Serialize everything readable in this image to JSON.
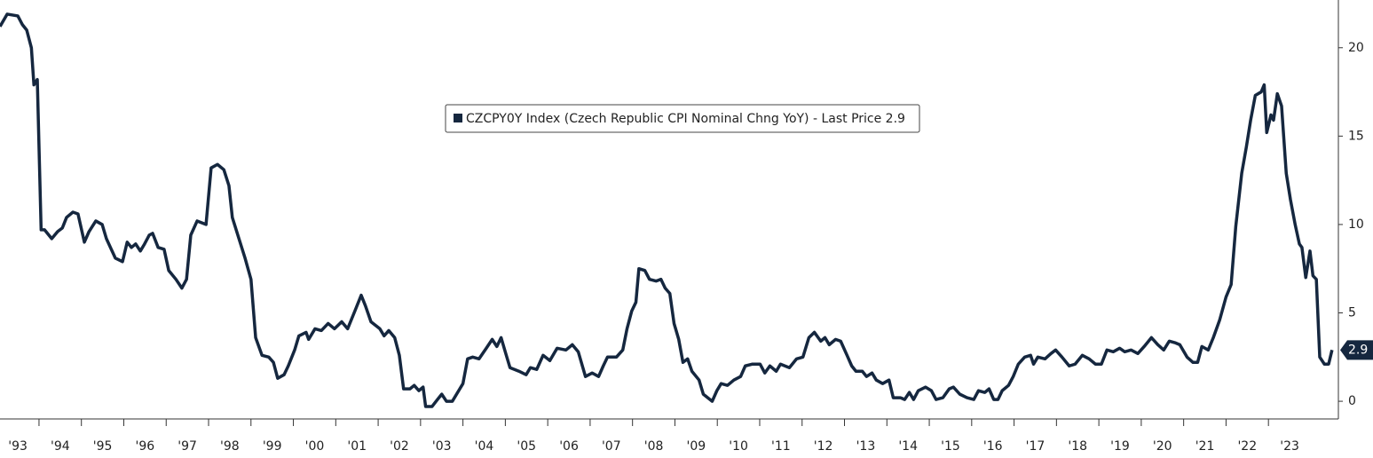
{
  "chart_data": {
    "type": "line",
    "x": [
      1993.08,
      1993.25,
      1993.5,
      1993.61,
      1993.71,
      1993.82,
      1993.88,
      1993.96,
      1994.05,
      1994.13,
      1994.3,
      1994.44,
      1994.55,
      1994.65,
      1994.8,
      1994.92,
      1995.07,
      1995.18,
      1995.34,
      1995.49,
      1995.59,
      1995.8,
      1995.97,
      1996.08,
      1996.18,
      1996.28,
      1996.39,
      1996.49,
      1996.6,
      1996.68,
      1996.81,
      1996.95,
      1997.06,
      1997.23,
      1997.37,
      1997.48,
      1997.58,
      1997.73,
      1997.94,
      1998.06,
      1998.21,
      1998.36,
      1998.48,
      1998.56,
      1998.69,
      1998.86,
      1999.0,
      1999.11,
      1999.26,
      1999.42,
      1999.53,
      1999.63,
      1999.78,
      1999.88,
      2000.03,
      2000.13,
      2000.3,
      2000.36,
      2000.51,
      2000.66,
      2000.82,
      2000.97,
      2001.14,
      2001.28,
      2001.45,
      2001.6,
      2001.7,
      2001.83,
      2002.04,
      2002.14,
      2002.25,
      2002.39,
      2002.5,
      2002.6,
      2002.75,
      2002.85,
      2002.96,
      2003.06,
      2003.12,
      2003.27,
      2003.4,
      2003.5,
      2003.61,
      2003.75,
      2003.9,
      2004.0,
      2004.11,
      2004.23,
      2004.38,
      2004.55,
      2004.69,
      2004.8,
      2004.9,
      2005.01,
      2005.11,
      2005.32,
      2005.49,
      2005.59,
      2005.74,
      2005.89,
      2006.05,
      2006.22,
      2006.43,
      2006.58,
      2006.72,
      2006.89,
      2007.05,
      2007.2,
      2007.31,
      2007.41,
      2007.62,
      2007.77,
      2007.87,
      2007.98,
      2008.08,
      2008.15,
      2008.29,
      2008.4,
      2008.56,
      2008.67,
      2008.77,
      2008.88,
      2008.98,
      2009.09,
      2009.19,
      2009.3,
      2009.4,
      2009.57,
      2009.67,
      2009.88,
      2009.99,
      2010.09,
      2010.24,
      2010.39,
      2010.55,
      2010.66,
      2010.82,
      2011.01,
      2011.12,
      2011.24,
      2011.39,
      2011.49,
      2011.7,
      2011.87,
      2012.02,
      2012.16,
      2012.29,
      2012.44,
      2012.54,
      2012.64,
      2012.79,
      2012.91,
      2013.06,
      2013.17,
      2013.27,
      2013.42,
      2013.52,
      2013.65,
      2013.75,
      2013.9,
      2014.05,
      2014.15,
      2014.32,
      2014.42,
      2014.53,
      2014.63,
      2014.74,
      2014.91,
      2015.05,
      2015.16,
      2015.32,
      2015.47,
      2015.57,
      2015.72,
      2015.89,
      2016.05,
      2016.16,
      2016.31,
      2016.41,
      2016.52,
      2016.62,
      2016.72,
      2016.87,
      2016.98,
      2017.1,
      2017.25,
      2017.39,
      2017.46,
      2017.56,
      2017.73,
      2017.87,
      2017.98,
      2018.13,
      2018.3,
      2018.44,
      2018.61,
      2018.77,
      2018.92,
      2019.06,
      2019.19,
      2019.34,
      2019.49,
      2019.61,
      2019.76,
      2019.92,
      2020.07,
      2020.24,
      2020.39,
      2020.53,
      2020.66,
      2020.81,
      2020.91,
      2021.08,
      2021.22,
      2021.33,
      2021.43,
      2021.58,
      2021.7,
      2021.85,
      2022.0,
      2022.12,
      2022.23,
      2022.37,
      2022.48,
      2022.58,
      2022.69,
      2022.83,
      2022.9,
      2022.96,
      2023.06,
      2023.12,
      2023.21,
      2023.31,
      2023.42,
      2023.52,
      2023.63,
      2023.73,
      2023.79,
      2023.88,
      2023.98,
      2024.05,
      2024.13,
      2024.21,
      2024.32,
      2024.42,
      2024.5
    ],
    "series": [
      {
        "name": "CZCPY0Y Index (Czech Republic CPI Nominal Chng YoY) - Last Price 2.9",
        "color": "#15273f",
        "values": [
          21.2,
          21.9,
          21.8,
          21.3,
          21.0,
          20.0,
          17.9,
          18.2,
          9.7,
          9.7,
          9.2,
          9.6,
          9.8,
          10.4,
          10.7,
          10.6,
          9.0,
          9.6,
          10.2,
          10.0,
          9.2,
          8.1,
          7.9,
          9.0,
          8.7,
          8.9,
          8.5,
          8.9,
          9.4,
          9.5,
          8.7,
          8.6,
          7.4,
          6.9,
          6.4,
          6.9,
          9.4,
          10.2,
          10.0,
          13.2,
          13.4,
          13.1,
          12.2,
          10.4,
          9.4,
          8.1,
          6.9,
          3.6,
          2.6,
          2.5,
          2.2,
          1.3,
          1.5,
          2.0,
          2.9,
          3.7,
          3.9,
          3.5,
          4.1,
          4.0,
          4.4,
          4.1,
          4.5,
          4.1,
          5.1,
          6.0,
          5.4,
          4.5,
          4.1,
          3.7,
          4.0,
          3.6,
          2.6,
          0.7,
          0.7,
          0.9,
          0.6,
          0.8,
          -0.3,
          -0.3,
          0.1,
          0.4,
          0.0,
          0.0,
          0.6,
          1.0,
          2.4,
          2.5,
          2.4,
          3.0,
          3.5,
          3.1,
          3.6,
          2.7,
          1.9,
          1.7,
          1.5,
          1.9,
          1.8,
          2.6,
          2.3,
          3.0,
          2.9,
          3.2,
          2.8,
          1.4,
          1.6,
          1.4,
          2.0,
          2.5,
          2.5,
          2.9,
          4.1,
          5.1,
          5.6,
          7.5,
          7.4,
          6.9,
          6.8,
          6.9,
          6.4,
          6.1,
          4.4,
          3.5,
          2.2,
          2.4,
          1.7,
          1.2,
          0.4,
          0.0,
          0.6,
          1.0,
          0.9,
          1.2,
          1.4,
          2.0,
          2.1,
          2.1,
          1.6,
          2.0,
          1.7,
          2.1,
          1.9,
          2.4,
          2.5,
          3.6,
          3.9,
          3.4,
          3.6,
          3.2,
          3.5,
          3.4,
          2.6,
          2.0,
          1.7,
          1.7,
          1.4,
          1.6,
          1.2,
          1.0,
          1.2,
          0.2,
          0.2,
          0.1,
          0.5,
          0.1,
          0.6,
          0.8,
          0.6,
          0.1,
          0.2,
          0.7,
          0.8,
          0.4,
          0.2,
          0.1,
          0.6,
          0.5,
          0.7,
          0.1,
          0.1,
          0.6,
          0.9,
          1.4,
          2.1,
          2.5,
          2.6,
          2.1,
          2.5,
          2.4,
          2.7,
          2.9,
          2.5,
          2.0,
          2.1,
          2.6,
          2.4,
          2.1,
          2.1,
          2.9,
          2.8,
          3.0,
          2.8,
          2.9,
          2.7,
          3.1,
          3.6,
          3.2,
          2.9,
          3.4,
          3.3,
          3.2,
          2.5,
          2.2,
          2.2,
          3.1,
          2.9,
          3.6,
          4.6,
          5.9,
          6.6,
          9.9,
          12.9,
          14.4,
          15.9,
          17.3,
          17.5,
          17.9,
          15.2,
          16.2,
          15.9,
          17.4,
          16.7,
          12.9,
          11.4,
          10.0,
          8.9,
          8.7,
          7.0,
          8.5,
          7.1,
          6.9,
          2.5,
          2.1,
          2.1,
          2.9
        ]
      }
    ],
    "last_price": 2.9,
    "xlim": [
      1993.08,
      2024.65
    ],
    "xticks": [
      {
        "value": 1993.5,
        "label": "'93"
      },
      {
        "value": 1994.5,
        "label": "'94"
      },
      {
        "value": 1995.5,
        "label": "'95"
      },
      {
        "value": 1996.5,
        "label": "'96"
      },
      {
        "value": 1997.5,
        "label": "'97"
      },
      {
        "value": 1998.5,
        "label": "'98"
      },
      {
        "value": 1999.5,
        "label": "'99"
      },
      {
        "value": 2000.5,
        "label": "'00"
      },
      {
        "value": 2001.5,
        "label": "'01"
      },
      {
        "value": 2002.5,
        "label": "'02"
      },
      {
        "value": 2003.5,
        "label": "'03"
      },
      {
        "value": 2004.5,
        "label": "'04"
      },
      {
        "value": 2005.5,
        "label": "'05"
      },
      {
        "value": 2006.5,
        "label": "'06"
      },
      {
        "value": 2007.5,
        "label": "'07"
      },
      {
        "value": 2008.5,
        "label": "'08"
      },
      {
        "value": 2009.5,
        "label": "'09"
      },
      {
        "value": 2010.5,
        "label": "'10"
      },
      {
        "value": 2011.5,
        "label": "'11"
      },
      {
        "value": 2012.5,
        "label": "'12"
      },
      {
        "value": 2013.5,
        "label": "'13"
      },
      {
        "value": 2014.5,
        "label": "'14"
      },
      {
        "value": 2015.5,
        "label": "'15"
      },
      {
        "value": 2016.5,
        "label": "'16"
      },
      {
        "value": 2017.5,
        "label": "'17"
      },
      {
        "value": 2018.5,
        "label": "'18"
      },
      {
        "value": 2019.5,
        "label": "'19"
      },
      {
        "value": 2020.5,
        "label": "'20"
      },
      {
        "value": 2021.5,
        "label": "'21"
      },
      {
        "value": 2022.5,
        "label": "'22"
      },
      {
        "value": 2023.5,
        "label": "'23"
      }
    ],
    "ylim": [
      -1.0,
      22.7
    ],
    "yticks": [
      0,
      5,
      10,
      15,
      20
    ]
  }
}
